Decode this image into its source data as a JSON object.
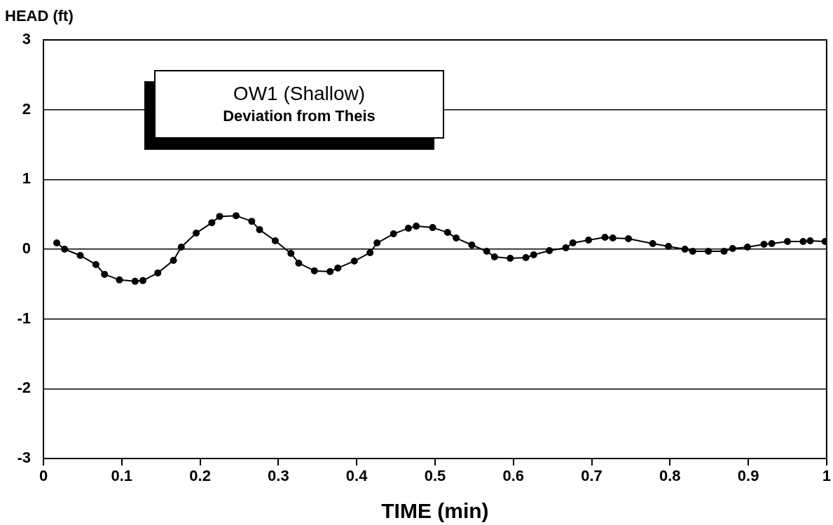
{
  "chart_data": {
    "type": "line",
    "title": "OW1 (Shallow)",
    "subtitle": "Deviation from Theis",
    "xlabel": "TIME (min)",
    "ylabel": "HEAD (ft)",
    "xlim": [
      0,
      1
    ],
    "xticks": [
      0,
      0.1,
      0.2,
      0.3,
      0.4,
      0.5,
      0.6,
      0.7,
      0.8,
      0.9,
      1
    ],
    "ylim": [
      -3,
      3
    ],
    "yticks": [
      -3,
      -2,
      -1,
      0,
      1,
      2,
      3
    ],
    "grid": "y",
    "marker": "circle",
    "line_style": "solid",
    "legend": false,
    "series": [
      {
        "color": "#000000",
        "x": [
          0.017,
          0.027,
          0.047,
          0.067,
          0.078,
          0.097,
          0.117,
          0.127,
          0.146,
          0.166,
          0.176,
          0.195,
          0.215,
          0.225,
          0.246,
          0.266,
          0.276,
          0.296,
          0.316,
          0.326,
          0.346,
          0.366,
          0.376,
          0.397,
          0.417,
          0.426,
          0.447,
          0.466,
          0.476,
          0.497,
          0.516,
          0.527,
          0.547,
          0.566,
          0.576,
          0.596,
          0.616,
          0.626,
          0.646,
          0.667,
          0.676,
          0.696,
          0.717,
          0.727,
          0.747,
          0.778,
          0.798,
          0.819,
          0.829,
          0.849,
          0.869,
          0.88,
          0.899,
          0.92,
          0.93,
          0.95,
          0.97,
          0.979,
          0.998
        ],
        "values": [
          0.09,
          0.0,
          -0.09,
          -0.22,
          -0.36,
          -0.44,
          -0.46,
          -0.45,
          -0.34,
          -0.16,
          0.03,
          0.23,
          0.38,
          0.47,
          0.48,
          0.4,
          0.28,
          0.12,
          -0.06,
          -0.2,
          -0.31,
          -0.32,
          -0.27,
          -0.17,
          -0.05,
          0.09,
          0.22,
          0.3,
          0.33,
          0.31,
          0.24,
          0.16,
          0.06,
          -0.03,
          -0.11,
          -0.13,
          -0.12,
          -0.08,
          -0.02,
          0.02,
          0.09,
          0.13,
          0.17,
          0.16,
          0.15,
          0.08,
          0.04,
          0.0,
          -0.03,
          -0.03,
          -0.03,
          0.01,
          0.03,
          0.07,
          0.08,
          0.11,
          0.11,
          0.12,
          0.11
        ]
      }
    ]
  }
}
